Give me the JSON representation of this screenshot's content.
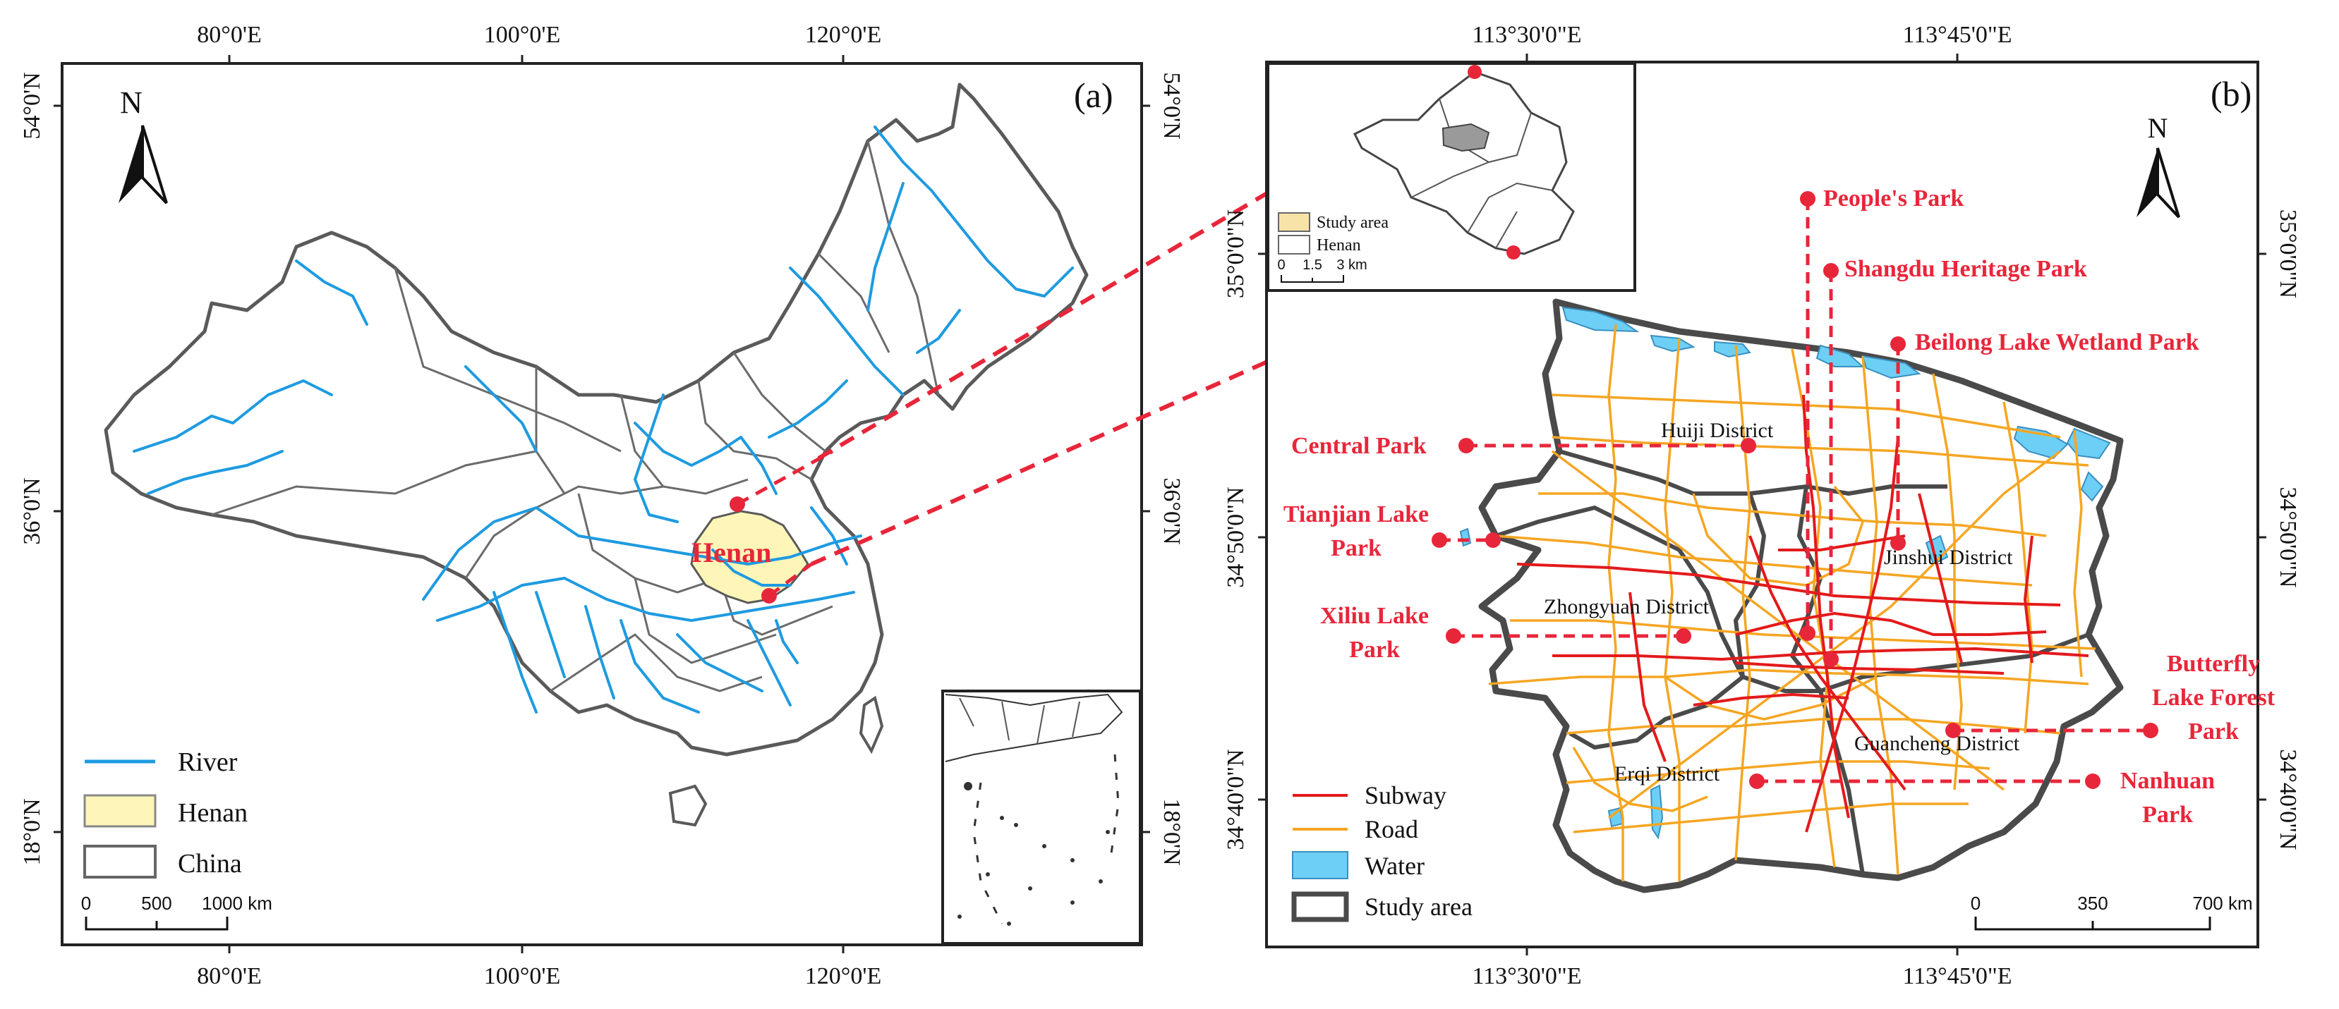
{
  "colors": {
    "river": "#1e9be0",
    "henan_fill": "#fdf6b8",
    "boundary": "#5a5a5a",
    "subway": "#e31a1c",
    "road": "#f5a623",
    "water": "#6ecff6",
    "park_label": "#e8263a",
    "study_area_fill": "#f7e3a8"
  },
  "panel_a": {
    "label": "(a)",
    "north": "N",
    "highlight_label": "Henan",
    "top_ticks": [
      "80°0'E",
      "100°0'E",
      "120°0'E"
    ],
    "bottom_ticks": [
      "80°0'E",
      "100°0'E",
      "120°0'E"
    ],
    "left_ticks": [
      "54°0'N",
      "36°0'N",
      "18°0'N"
    ],
    "right_ticks": [
      "54°0'N",
      "36°0'N",
      "18°0'N"
    ],
    "legend": [
      {
        "symbol": "line",
        "label": "River"
      },
      {
        "symbol": "box",
        "label": "Henan"
      },
      {
        "symbol": "box",
        "label": "China"
      }
    ],
    "scale": {
      "labels": [
        "0",
        "500",
        "1000 km"
      ]
    }
  },
  "panel_b": {
    "label": "(b)",
    "north": "N",
    "top_ticks": [
      "113°30'0\"E",
      "113°45'0\"E"
    ],
    "bottom_ticks": [
      "113°30'0\"E",
      "113°45'0\"E"
    ],
    "left_ticks": [
      "35°0'0\"N",
      "34°50'0\"N",
      "34°40'0\"N"
    ],
    "right_ticks": [
      "35°0'0\"N",
      "34°50'0\"N",
      "34°40'0\"N"
    ],
    "districts": [
      "Huiji District",
      "Jinshui District",
      "Zhongyuan District",
      "Guancheng District",
      "Erqi District"
    ],
    "parks": [
      "People's Park",
      "Shangdu Heritage Park",
      "Beilong Lake Wetland Park",
      "Central Park",
      "Tianjian Lake",
      "Park",
      "Xiliu Lake",
      "Park",
      "Butterfly",
      "Lake Forest",
      "Park",
      "Nanhuan",
      "Park"
    ],
    "inset_legend": [
      {
        "label": "Study area"
      },
      {
        "label": "Henan"
      }
    ],
    "inset_scale": [
      "0",
      "1.5",
      "3 km"
    ],
    "legend": [
      {
        "symbol": "line",
        "label": "Subway"
      },
      {
        "symbol": "line",
        "label": "Road"
      },
      {
        "symbol": "box",
        "label": "Water"
      },
      {
        "symbol": "box",
        "label": "Study area"
      }
    ],
    "scale": {
      "labels": [
        "0",
        "350",
        "700 km"
      ]
    }
  }
}
